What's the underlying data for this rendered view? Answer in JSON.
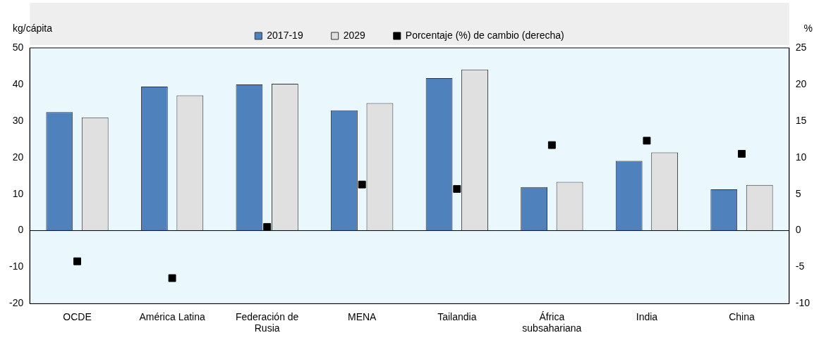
{
  "chart_data": {
    "type": "bar",
    "ylabel": "kg/cápita",
    "y2label": "%",
    "categories": [
      "OCDE",
      "América Latina",
      "Federación de Rusia",
      "MENA",
      "Tailandia",
      "África subsahariana",
      "India",
      "China"
    ],
    "series": [
      {
        "name": "2017-19",
        "color": "#4f81bd",
        "values": [
          32.4,
          39.4,
          40.0,
          32.9,
          41.7,
          11.9,
          19.1,
          11.3
        ]
      },
      {
        "name": "2029",
        "color": "#e0e0e0",
        "values": [
          31.0,
          37.0,
          40.2,
          34.9,
          44.1,
          13.3,
          21.4,
          12.5
        ]
      },
      {
        "name": "Porcentaje (%) de cambio (derecha)",
        "type": "scatter",
        "axis": "y2",
        "marker": "square",
        "color": "#000000",
        "values": [
          -4.2,
          -6.5,
          0.5,
          6.3,
          5.7,
          11.7,
          12.3,
          10.5
        ]
      }
    ],
    "ylim": [
      -20,
      50
    ],
    "yticks": [
      -20,
      -10,
      0,
      10,
      20,
      30,
      40,
      50
    ],
    "y2lim": [
      -10,
      25
    ],
    "y2ticks": [
      -10,
      -5,
      0,
      5,
      10,
      15,
      20,
      25
    ],
    "ref_lines": [
      {
        "axis": "y",
        "value": 0,
        "color": "#000000"
      }
    ],
    "legend": "top",
    "grid": false
  }
}
